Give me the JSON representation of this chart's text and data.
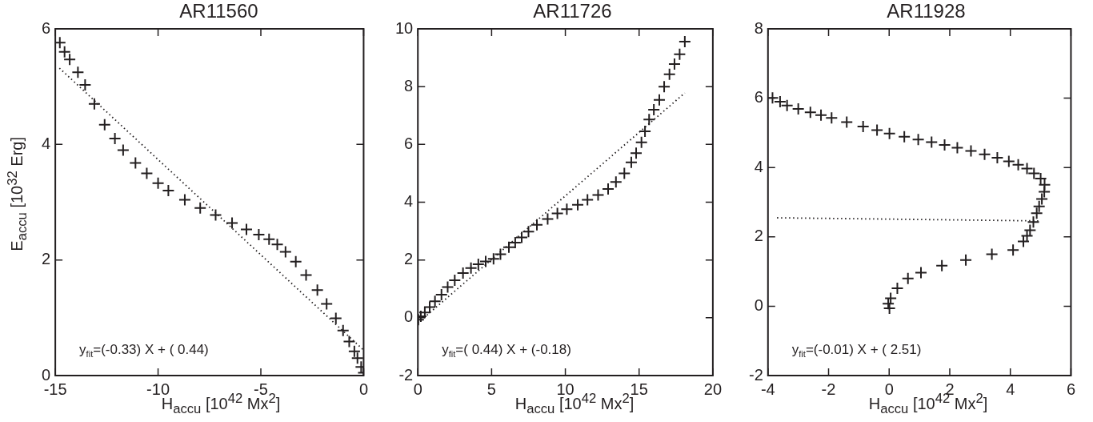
{
  "chart_data": [
    {
      "type": "scatter",
      "title": "AR11560",
      "xlabel": "H$_{accu}$ [10$^{42}$ Mx$^{2}$]",
      "ylabel": "E$_{accu}$ [10$^{32}$ Erg]",
      "xlim": [
        -15,
        0
      ],
      "xticks": [
        -15,
        -10,
        -5,
        0
      ],
      "ylim": [
        0,
        6
      ],
      "yticks": [
        0,
        2,
        4,
        6
      ],
      "grid": false,
      "legend": false,
      "marker": "cross",
      "annotations": [
        "y$_{fit}$=(-0.33) X + ( 0.44)"
      ],
      "series": [
        {
          "color": "#231f20",
          "x": [
            -14.78,
            -14.55,
            -14.3,
            -13.9,
            -13.55,
            -13.1,
            -12.6,
            -12.1,
            -11.7,
            -11.1,
            -10.55,
            -10.0,
            -9.5,
            -8.7,
            -7.95,
            -7.2,
            -6.4,
            -5.7,
            -5.1,
            -4.6,
            -4.2,
            -3.8,
            -3.3,
            -2.8,
            -2.25,
            -1.8,
            -1.35,
            -1.0,
            -0.7,
            -0.45,
            -0.3,
            -0.12,
            0.0
          ],
          "values": [
            5.76,
            5.6,
            5.47,
            5.25,
            5.03,
            4.7,
            4.34,
            4.1,
            3.9,
            3.68,
            3.5,
            3.33,
            3.2,
            3.04,
            2.9,
            2.78,
            2.64,
            2.53,
            2.44,
            2.36,
            2.27,
            2.14,
            1.97,
            1.74,
            1.48,
            1.24,
            0.99,
            0.78,
            0.59,
            0.42,
            0.3,
            0.15,
            0.05
          ]
        },
        {
          "type": "line",
          "color": "#231f20",
          "line_style": "dotted",
          "marker": "none",
          "x": [
            -14.8,
            0
          ],
          "values": [
            5.32,
            0.44
          ]
        }
      ]
    },
    {
      "type": "scatter",
      "title": "AR11726",
      "xlabel": "H$_{accu}$ [10$^{42}$ Mx$^{2}$]",
      "xlim": [
        0,
        20
      ],
      "xticks": [
        0,
        5,
        10,
        15,
        20
      ],
      "ylim": [
        -2,
        10
      ],
      "yticks": [
        -2,
        0,
        2,
        4,
        6,
        8,
        10
      ],
      "grid": false,
      "legend": false,
      "marker": "cross",
      "annotations": [
        "y$_{fit}$=( 0.44) X + (-0.18)"
      ],
      "series": [
        {
          "color": "#231f20",
          "x": [
            0.03,
            0.2,
            0.47,
            0.8,
            1.16,
            1.6,
            2.02,
            2.5,
            3.06,
            3.6,
            4.1,
            4.6,
            5.13,
            5.6,
            6.17,
            6.6,
            7.04,
            7.5,
            8.07,
            8.8,
            9.46,
            10.1,
            10.84,
            11.5,
            12.22,
            12.9,
            13.43,
            14.0,
            14.47,
            14.8,
            15.16,
            15.4,
            15.68,
            16.0,
            16.37,
            16.7,
            17.06,
            17.4,
            17.75,
            18.1
          ],
          "values": [
            -0.07,
            0.05,
            0.18,
            0.37,
            0.57,
            0.8,
            1.06,
            1.3,
            1.55,
            1.72,
            1.85,
            1.95,
            2.04,
            2.2,
            2.44,
            2.6,
            2.78,
            2.98,
            3.22,
            3.42,
            3.61,
            3.76,
            3.91,
            4.08,
            4.25,
            4.46,
            4.7,
            5.0,
            5.38,
            5.7,
            6.07,
            6.45,
            6.86,
            7.2,
            7.54,
            8.0,
            8.43,
            8.78,
            9.12,
            9.56
          ]
        },
        {
          "type": "line",
          "color": "#231f20",
          "line_style": "dotted",
          "marker": "none",
          "x": [
            0,
            18.1
          ],
          "values": [
            -0.18,
            7.78
          ]
        }
      ]
    },
    {
      "type": "scatter",
      "title": "AR11928",
      "xlabel": "H$_{accu}$ [10$^{42}$ Mx$^{2}$]",
      "xlim": [
        -4,
        6
      ],
      "xticks": [
        -4,
        -2,
        0,
        2,
        4,
        6
      ],
      "ylim": [
        -2,
        8
      ],
      "yticks": [
        -2,
        0,
        2,
        4,
        6,
        8
      ],
      "grid": false,
      "legend": false,
      "marker": "cross",
      "annotations": [
        "y$_{fit}$=(-0.01) X + ( 2.51)"
      ],
      "series": [
        {
          "color": "#231f20",
          "x": [
            -3.85,
            -3.6,
            -3.37,
            -3.0,
            -2.6,
            -2.25,
            -1.9,
            -1.4,
            -0.86,
            -0.4,
            0.01,
            0.5,
            0.96,
            1.4,
            1.83,
            2.25,
            2.7,
            3.15,
            3.57,
            3.95,
            4.26,
            4.55,
            4.78,
            5.0,
            5.13,
            5.12,
            5.04,
            4.95,
            4.87,
            4.76,
            4.65,
            4.55,
            4.43,
            4.09,
            3.39,
            2.53,
            1.74,
            1.05,
            0.62,
            0.27,
            0.05,
            -0.03,
            0.01
          ],
          "values": [
            6.01,
            5.9,
            5.79,
            5.69,
            5.59,
            5.51,
            5.43,
            5.31,
            5.18,
            5.08,
            4.98,
            4.89,
            4.81,
            4.73,
            4.65,
            4.57,
            4.48,
            4.38,
            4.28,
            4.18,
            4.08,
            3.97,
            3.83,
            3.68,
            3.5,
            3.3,
            3.09,
            2.88,
            2.68,
            2.43,
            2.19,
            2.03,
            1.87,
            1.62,
            1.5,
            1.33,
            1.17,
            0.97,
            0.8,
            0.52,
            0.23,
            0.07,
            -0.06
          ]
        },
        {
          "type": "line",
          "color": "#231f20",
          "line_style": "dotted",
          "marker": "none",
          "x": [
            -3.7,
            5.0
          ],
          "values": [
            2.55,
            2.46
          ]
        }
      ]
    }
  ]
}
